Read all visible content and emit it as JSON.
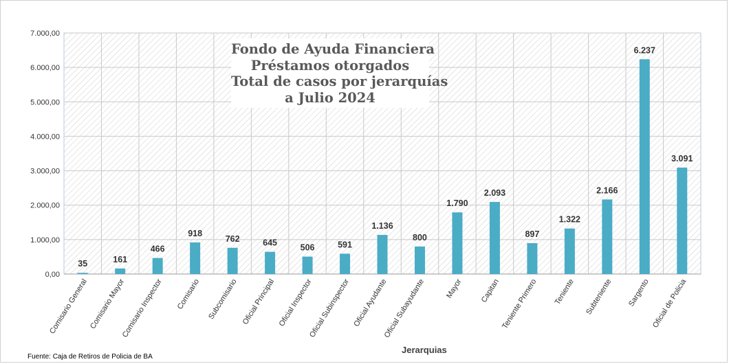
{
  "chart_data": {
    "type": "bar",
    "title_lines": [
      "Fondo de Ayuda Financiera",
      "Préstamos otorgados",
      "Total de casos por jerarquías",
      "a Julio 2024"
    ],
    "xlabel": "Jerarquias",
    "ylabel": "",
    "ylim": [
      0,
      7000
    ],
    "yticks": [
      "0,00",
      "1.000,00",
      "2.000,00",
      "3.000,00",
      "4.000,00",
      "5.000,00",
      "6.000,00",
      "7.000,00"
    ],
    "categories": [
      "Comisario General",
      "Comisario Mayor",
      "Comisario Inspector",
      "Comisario",
      "Subcomisario",
      "Oficial Principal",
      "Oficial Inspector",
      "Oficial Subinspector",
      "Oficial Ayudante",
      "Oficial Subayudante",
      "Mayor",
      "Capitan",
      "Teniente Primero",
      "Teniente",
      "Subteniente",
      "Sargento",
      "Oficial de Policia"
    ],
    "values": [
      35,
      161,
      466,
      918,
      762,
      645,
      506,
      591,
      1136,
      800,
      1790,
      2093,
      897,
      1322,
      2166,
      6237,
      3091
    ],
    "value_labels": [
      "35",
      "161",
      "466",
      "918",
      "762",
      "645",
      "506",
      "591",
      "1.136",
      "800",
      "1.790",
      "2.093",
      "897",
      "1.322",
      "2.166",
      "6.237",
      "3.091"
    ],
    "bar_color": "#4bacc6",
    "grid": true,
    "legend": "none",
    "source": "Fuente: Caja de Retiros de Policia de BA"
  }
}
